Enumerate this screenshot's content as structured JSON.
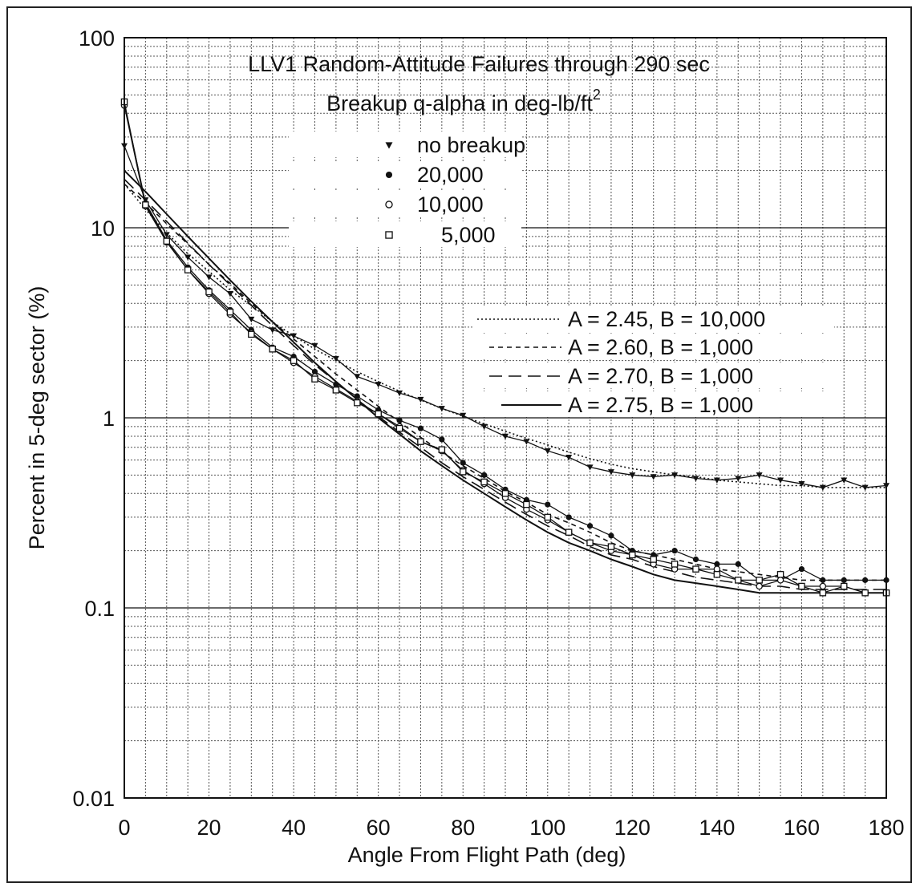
{
  "chart_data": {
    "type": "line",
    "title": "LLV1 Random-Attitude Failures through 290 sec",
    "subtitle_main": "Breakup q-alpha in deg-lb/ft",
    "subtitle_sup": "2",
    "xlabel": "Angle From Flight Path (deg)",
    "ylabel": "Percent in 5-deg sector (%)",
    "xlim": [
      0,
      180
    ],
    "ylim": [
      0.01,
      100
    ],
    "y_scale": "log",
    "grid": true,
    "x_ticks": [
      "0",
      "20",
      "40",
      "60",
      "80",
      "100",
      "120",
      "140",
      "160",
      "180"
    ],
    "y_ticks": [
      "0.01",
      "0.1",
      "1",
      "10",
      "100"
    ],
    "x": [
      0,
      5,
      10,
      15,
      20,
      25,
      30,
      35,
      40,
      45,
      50,
      55,
      60,
      65,
      70,
      75,
      80,
      85,
      90,
      95,
      100,
      105,
      110,
      115,
      120,
      125,
      130,
      135,
      140,
      145,
      150,
      155,
      160,
      165,
      170,
      175,
      180
    ],
    "series": [
      {
        "name": "no breakup",
        "marker": "triangle-down",
        "values": [
          27,
          14,
          9.2,
          7,
          5.5,
          4.5,
          3.3,
          2.9,
          2.7,
          2.4,
          2.05,
          1.65,
          1.5,
          1.35,
          1.25,
          1.12,
          1.03,
          0.9,
          0.8,
          0.75,
          0.67,
          0.62,
          0.55,
          0.52,
          0.5,
          0.49,
          0.5,
          0.48,
          0.47,
          0.48,
          0.5,
          0.47,
          0.45,
          0.43,
          0.47,
          0.43,
          0.44
        ]
      },
      {
        "name": "20,000",
        "marker": "filled-circle",
        "values": [
          45,
          13.5,
          8.6,
          6.2,
          4.7,
          3.7,
          2.9,
          2.35,
          2.1,
          1.75,
          1.5,
          1.3,
          1.1,
          0.97,
          0.88,
          0.77,
          0.58,
          0.5,
          0.42,
          0.37,
          0.35,
          0.3,
          0.27,
          0.24,
          0.2,
          0.19,
          0.2,
          0.18,
          0.17,
          0.17,
          0.14,
          0.14,
          0.16,
          0.14,
          0.14,
          0.14,
          0.14
        ]
      },
      {
        "name": "10,000",
        "marker": "open-circle",
        "values": [
          44,
          13,
          8.4,
          6,
          4.5,
          3.5,
          2.8,
          2.3,
          1.95,
          1.65,
          1.42,
          1.22,
          1.05,
          0.9,
          0.75,
          0.67,
          0.53,
          0.45,
          0.38,
          0.33,
          0.29,
          0.25,
          0.22,
          0.2,
          0.19,
          0.17,
          0.16,
          0.16,
          0.16,
          0.14,
          0.13,
          0.14,
          0.13,
          0.13,
          0.13,
          0.12,
          0.12
        ]
      },
      {
        "name": "5,000",
        "marker": "open-square",
        "values": [
          46,
          13.2,
          8.5,
          6,
          4.6,
          3.6,
          2.75,
          2.3,
          2.0,
          1.6,
          1.4,
          1.2,
          1.05,
          0.88,
          0.75,
          0.68,
          0.52,
          0.46,
          0.4,
          0.35,
          0.3,
          0.25,
          0.22,
          0.21,
          0.19,
          0.18,
          0.17,
          0.16,
          0.15,
          0.14,
          0.14,
          0.15,
          0.13,
          0.12,
          0.13,
          0.12,
          0.12
        ]
      }
    ],
    "fits": [
      {
        "name": "A = 2.45, B = 10,000",
        "style": "dotted",
        "values": [
          17,
          12.5,
          9.4,
          7.3,
          5.9,
          4.7,
          3.9,
          3.2,
          2.7,
          2.3,
          2.0,
          1.75,
          1.55,
          1.38,
          1.24,
          1.12,
          1.02,
          0.93,
          0.85,
          0.78,
          0.72,
          0.66,
          0.61,
          0.57,
          0.54,
          0.52,
          0.5,
          0.49,
          0.47,
          0.46,
          0.45,
          0.44,
          0.44,
          0.43,
          0.43,
          0.43,
          0.43
        ]
      },
      {
        "name": "A = 2.60, B = 1,000",
        "style": "short-dash",
        "values": [
          17,
          13.5,
          10.5,
          8.2,
          6.4,
          5.1,
          4.0,
          3.2,
          2.6,
          2.1,
          1.7,
          1.4,
          1.15,
          0.95,
          0.79,
          0.66,
          0.56,
          0.48,
          0.41,
          0.36,
          0.31,
          0.28,
          0.25,
          0.22,
          0.2,
          0.19,
          0.18,
          0.17,
          0.16,
          0.155,
          0.15,
          0.145,
          0.14,
          0.14,
          0.14,
          0.14,
          0.14
        ]
      },
      {
        "name": "A = 2.70, B = 1,000",
        "style": "long-dash",
        "values": [
          18,
          14,
          10.8,
          8.3,
          6.4,
          5.0,
          3.9,
          3.05,
          2.4,
          1.9,
          1.55,
          1.25,
          1.02,
          0.84,
          0.7,
          0.58,
          0.49,
          0.42,
          0.36,
          0.31,
          0.27,
          0.24,
          0.21,
          0.19,
          0.18,
          0.165,
          0.155,
          0.145,
          0.14,
          0.135,
          0.13,
          0.13,
          0.125,
          0.125,
          0.125,
          0.125,
          0.125
        ]
      },
      {
        "name": "A = 2.75, B = 1,000",
        "style": "solid",
        "values": [
          20,
          15.5,
          11.8,
          9.0,
          6.9,
          5.3,
          4.1,
          3.2,
          2.5,
          1.95,
          1.55,
          1.25,
          1.0,
          0.82,
          0.67,
          0.56,
          0.47,
          0.4,
          0.34,
          0.29,
          0.25,
          0.22,
          0.2,
          0.18,
          0.165,
          0.15,
          0.14,
          0.135,
          0.13,
          0.125,
          0.12,
          0.12,
          0.12,
          0.12,
          0.12,
          0.12,
          0.12
        ]
      }
    ]
  }
}
